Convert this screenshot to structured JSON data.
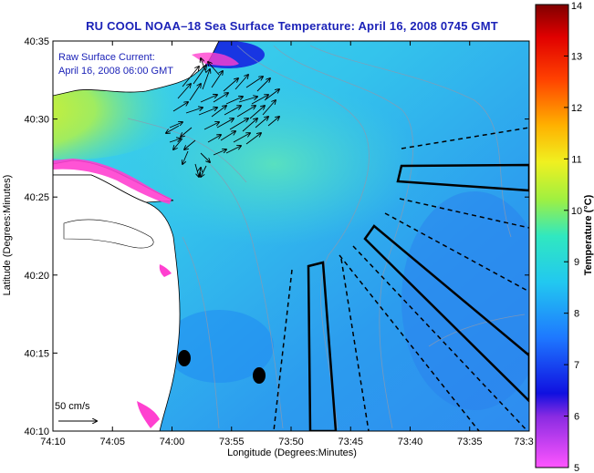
{
  "title": "RU COOL  NOAA–18  Sea Surface Temperature:  April 16, 2008 0745 GMT",
  "current_label": {
    "line1": "Raw Surface Current:",
    "line2": "April 16, 2008 06:00 GMT"
  },
  "scale_label": "50 cm/s",
  "x_axis": {
    "label": "Longitude (Degrees:Minutes)",
    "ticks": [
      "74:10",
      "74:05",
      "74:00",
      "73:55",
      "73:50",
      "73:45",
      "73:40",
      "73:35",
      "73:3"
    ]
  },
  "y_axis": {
    "label": "Latitude (Degrees:Minutes)",
    "ticks": [
      "40:35",
      "40:30",
      "40:25",
      "40:20",
      "40:15",
      "40:10"
    ]
  },
  "colorbar": {
    "label": "Temperature (°C)",
    "ticks": [
      "14",
      "13",
      "12",
      "11",
      "10",
      "9",
      "8",
      "7",
      "6",
      "5"
    ],
    "range": [
      5,
      14
    ]
  },
  "colors": {
    "land": "#ffffff",
    "sea_base": "#38c8ea",
    "warm_sea": "#c8e83a",
    "cool_sea": "#2a8cf0",
    "title_blue": "#1c23b8"
  },
  "icons": {
    "vector": "arrow-icon",
    "buoy": "filled-ellipse"
  }
}
